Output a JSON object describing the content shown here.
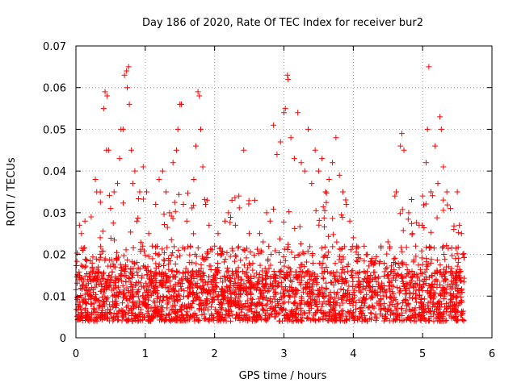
{
  "chart_data": {
    "type": "scatter",
    "title": "Day 186 of 2020, Rate Of TEC Index for receiver bur2",
    "xlabel": "GPS time / hours",
    "ylabel": "ROTI / TECUs",
    "xlim": [
      0,
      6
    ],
    "ylim": [
      0,
      0.07
    ],
    "x_ticks": [
      "0",
      "1",
      "2",
      "3",
      "4",
      "5",
      "6"
    ],
    "y_ticks": [
      "0",
      "0.01",
      "0.02",
      "0.03",
      "0.04",
      "0.05",
      "0.06",
      "0.07"
    ],
    "grid": true,
    "legend": "none",
    "marker": "plus",
    "series": [
      {
        "color": "#ff0000",
        "points": [
          [
            0.05,
            0.027
          ],
          [
            0.08,
            0.025
          ],
          [
            0.1,
            0.021
          ],
          [
            0.13,
            0.028
          ],
          [
            0.18,
            0.013
          ],
          [
            0.22,
            0.029
          ],
          [
            0.28,
            0.038
          ],
          [
            0.3,
            0.035
          ],
          [
            0.35,
            0.024
          ],
          [
            0.4,
            0.055
          ],
          [
            0.42,
            0.059
          ],
          [
            0.45,
            0.058
          ],
          [
            0.44,
            0.045
          ],
          [
            0.47,
            0.045
          ],
          [
            0.5,
            0.031
          ],
          [
            0.55,
            0.035
          ],
          [
            0.6,
            0.037
          ],
          [
            0.63,
            0.043
          ],
          [
            0.65,
            0.05
          ],
          [
            0.68,
            0.05
          ],
          [
            0.7,
            0.063
          ],
          [
            0.73,
            0.064
          ],
          [
            0.76,
            0.065
          ],
          [
            0.74,
            0.06
          ],
          [
            0.77,
            0.056
          ],
          [
            0.8,
            0.045
          ],
          [
            0.82,
            0.037
          ],
          [
            0.85,
            0.04
          ],
          [
            0.88,
            0.028
          ],
          [
            0.92,
            0.035
          ],
          [
            0.97,
            0.041
          ],
          [
            1.02,
            0.035
          ],
          [
            1.05,
            0.025
          ],
          [
            1.1,
            0.022
          ],
          [
            1.15,
            0.032
          ],
          [
            1.2,
            0.038
          ],
          [
            1.25,
            0.04
          ],
          [
            1.3,
            0.035
          ],
          [
            1.35,
            0.03
          ],
          [
            1.4,
            0.042
          ],
          [
            1.45,
            0.045
          ],
          [
            1.47,
            0.05
          ],
          [
            1.5,
            0.056
          ],
          [
            1.52,
            0.056
          ],
          [
            1.55,
            0.032
          ],
          [
            1.6,
            0.028
          ],
          [
            1.65,
            0.022
          ],
          [
            1.7,
            0.038
          ],
          [
            1.73,
            0.046
          ],
          [
            1.76,
            0.059
          ],
          [
            1.78,
            0.058
          ],
          [
            1.8,
            0.05
          ],
          [
            1.83,
            0.041
          ],
          [
            1.87,
            0.032
          ],
          [
            1.92,
            0.027
          ],
          [
            2.0,
            0.022
          ],
          [
            2.05,
            0.025
          ],
          [
            2.1,
            0.02
          ],
          [
            2.15,
            0.028
          ],
          [
            2.2,
            0.03
          ],
          [
            2.25,
            0.033
          ],
          [
            2.3,
            0.027
          ],
          [
            2.35,
            0.034
          ],
          [
            2.42,
            0.045
          ],
          [
            2.5,
            0.025
          ],
          [
            2.58,
            0.033
          ],
          [
            2.65,
            0.025
          ],
          [
            2.7,
            0.023
          ],
          [
            2.75,
            0.03
          ],
          [
            2.8,
            0.028
          ],
          [
            2.85,
            0.051
          ],
          [
            2.9,
            0.044
          ],
          [
            2.95,
            0.047
          ],
          [
            3.0,
            0.054
          ],
          [
            3.02,
            0.055
          ],
          [
            3.05,
            0.063
          ],
          [
            3.06,
            0.062
          ],
          [
            3.1,
            0.048
          ],
          [
            3.15,
            0.043
          ],
          [
            3.2,
            0.054
          ],
          [
            3.25,
            0.042
          ],
          [
            3.3,
            0.04
          ],
          [
            3.35,
            0.05
          ],
          [
            3.4,
            0.037
          ],
          [
            3.45,
            0.045
          ],
          [
            3.5,
            0.04
          ],
          [
            3.55,
            0.043
          ],
          [
            3.6,
            0.035
          ],
          [
            3.65,
            0.038
          ],
          [
            3.7,
            0.042
          ],
          [
            3.75,
            0.048
          ],
          [
            3.8,
            0.039
          ],
          [
            3.85,
            0.035
          ],
          [
            3.9,
            0.032
          ],
          [
            3.95,
            0.028
          ],
          [
            4.0,
            0.024
          ],
          [
            4.05,
            0.022
          ],
          [
            4.1,
            0.019
          ],
          [
            4.2,
            0.02
          ],
          [
            4.3,
            0.018
          ],
          [
            4.4,
            0.022
          ],
          [
            4.5,
            0.023
          ],
          [
            4.6,
            0.034
          ],
          [
            4.62,
            0.035
          ],
          [
            4.68,
            0.046
          ],
          [
            4.7,
            0.049
          ],
          [
            4.73,
            0.045
          ],
          [
            4.8,
            0.03
          ],
          [
            4.85,
            0.025
          ],
          [
            4.9,
            0.022
          ],
          [
            4.95,
            0.027
          ],
          [
            5.0,
            0.034
          ],
          [
            5.05,
            0.042
          ],
          [
            5.07,
            0.05
          ],
          [
            5.09,
            0.065
          ],
          [
            5.12,
            0.035
          ],
          [
            5.18,
            0.046
          ],
          [
            5.22,
            0.037
          ],
          [
            5.25,
            0.053
          ],
          [
            5.27,
            0.05
          ],
          [
            5.3,
            0.041
          ],
          [
            5.35,
            0.035
          ],
          [
            5.4,
            0.031
          ],
          [
            5.45,
            0.026
          ],
          [
            5.5,
            0.035
          ],
          [
            5.53,
            0.027
          ],
          [
            5.56,
            0.025
          ],
          [
            5.58,
            0.02
          ]
        ]
      }
    ],
    "dense_band": {
      "x_range": [
        0,
        5.6
      ],
      "y_range": [
        0.003,
        0.021
      ],
      "description_points_count": 0
    }
  }
}
